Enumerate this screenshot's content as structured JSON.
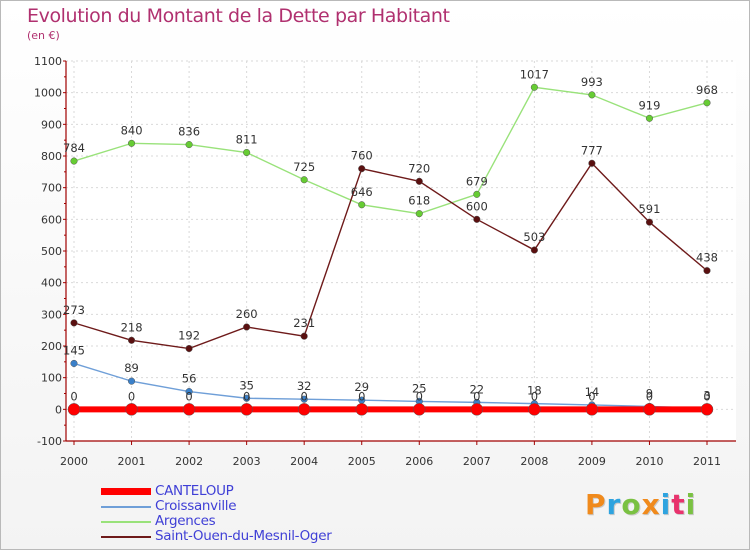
{
  "title": "Evolution du Montant de la Dette par Habitant",
  "subtitle": "(en €)",
  "logo": {
    "text": "Proxiti",
    "letters": [
      {
        "ch": "P",
        "color": "#f08a1c"
      },
      {
        "ch": "r",
        "color": "#2ea3df"
      },
      {
        "ch": "o",
        "color": "#7ac142"
      },
      {
        "ch": "x",
        "color": "#f08a1c"
      },
      {
        "ch": "i",
        "color": "#2ea3df"
      },
      {
        "ch": "t",
        "color": "#e8336d"
      },
      {
        "ch": "i",
        "color": "#7ac142"
      }
    ]
  },
  "chart_data": {
    "type": "line",
    "x": [
      "2000",
      "2001",
      "2002",
      "2003",
      "2004",
      "2005",
      "2006",
      "2007",
      "2008",
      "2009",
      "2010",
      "2011"
    ],
    "ylim": [
      -100,
      1100
    ],
    "yticks": [
      "-100",
      "0",
      "100",
      "200",
      "300",
      "400",
      "500",
      "600",
      "700",
      "800",
      "900",
      "1000",
      "1100"
    ],
    "grid": true,
    "legend_position": "bottom-left",
    "series": [
      {
        "name": "CANTELOUP",
        "color": "#ff0000",
        "values": [
          0,
          0,
          0,
          0,
          0,
          0,
          0,
          0,
          0,
          0,
          0,
          0
        ],
        "labels": [
          "0",
          "0",
          "0",
          "0",
          "0",
          "0",
          "0",
          "0",
          "0",
          "0",
          "0",
          "0"
        ]
      },
      {
        "name": "Croissanville",
        "color": "#6f9fd8",
        "values": [
          145,
          89,
          56,
          35,
          32,
          29,
          25,
          22,
          18,
          14,
          9,
          3
        ],
        "labels": [
          "145",
          "89",
          "56",
          "35",
          "32",
          "29",
          "25",
          "22",
          "18",
          "14",
          "9",
          "3"
        ]
      },
      {
        "name": "Argences",
        "color": "#99e27a",
        "values": [
          784,
          840,
          836,
          811,
          725,
          646,
          618,
          679,
          1017,
          993,
          919,
          968
        ],
        "labels": [
          "784",
          "840",
          "836",
          "811",
          "725",
          "646",
          "618",
          "679",
          "1017",
          "993",
          "919",
          "968"
        ]
      },
      {
        "name": "Saint-Ouen-du-Mesnil-Oger",
        "color": "#6e1a1a",
        "values": [
          273,
          218,
          192,
          260,
          231,
          760,
          720,
          600,
          503,
          777,
          591,
          438
        ],
        "labels": [
          "273",
          "218",
          "192",
          "260",
          "231",
          "760",
          "720",
          "600",
          "503",
          "777",
          "591",
          "438"
        ]
      }
    ]
  }
}
